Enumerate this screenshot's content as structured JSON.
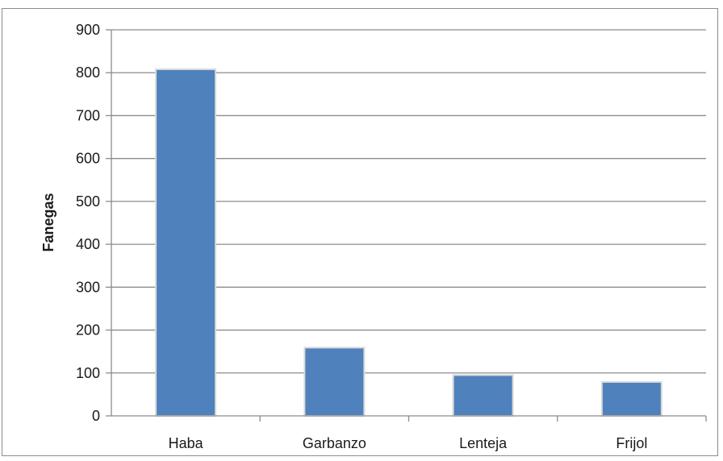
{
  "chart_data": {
    "type": "bar",
    "title": "",
    "xlabel": "",
    "ylabel": "Fanegas",
    "categories": [
      "Haba",
      "Garbanzo",
      "Lenteja",
      "Frijol"
    ],
    "values": [
      808,
      159,
      95,
      79
    ],
    "ylim": [
      0,
      900
    ],
    "yticks": [
      0,
      100,
      200,
      300,
      400,
      500,
      600,
      700,
      800,
      900
    ],
    "grid": true,
    "legend": "none",
    "colors": {
      "bar": "#4f81bd",
      "bar_edge": "#d9d9d9",
      "grid": "#8c8c8c",
      "text": "#1a1a1a"
    }
  }
}
